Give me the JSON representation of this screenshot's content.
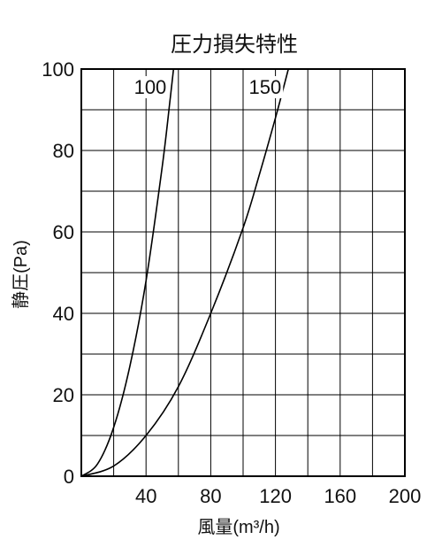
{
  "chart_data": {
    "type": "line",
    "title": "圧力損失特性",
    "xlabel": "風量(m³/h)",
    "ylabel": "静圧(Pa)",
    "xlim": [
      0,
      200
    ],
    "ylim": [
      0,
      100
    ],
    "xticks": [
      40,
      80,
      120,
      160,
      200
    ],
    "yticks": [
      0,
      20,
      40,
      60,
      80,
      100
    ],
    "grid": true,
    "series": [
      {
        "name": "100",
        "x": [
          0,
          10,
          20,
          30,
          40,
          50,
          55,
          57
        ],
        "y": [
          0,
          3,
          12,
          27,
          48,
          76,
          93,
          100
        ]
      },
      {
        "name": "150",
        "x": [
          0,
          20,
          40,
          60,
          80,
          100,
          110,
          120,
          128
        ],
        "y": [
          0,
          2.5,
          10,
          22,
          40,
          61,
          74,
          88,
          100
        ]
      }
    ]
  }
}
